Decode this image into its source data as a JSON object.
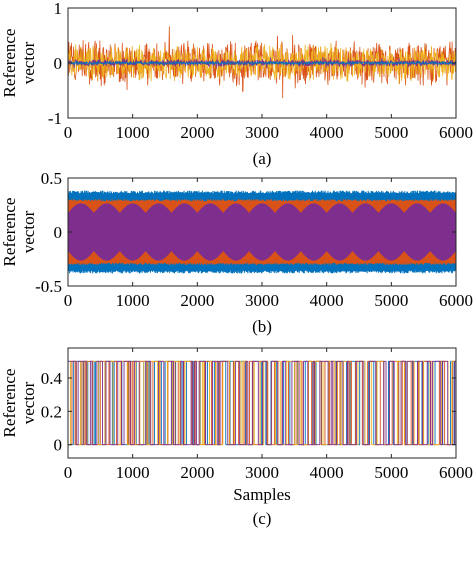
{
  "chart_data": [
    {
      "id": "a",
      "type": "line",
      "caption": "(a)",
      "ylabel": [
        "Reference",
        "vector"
      ],
      "xlabel": "",
      "xlim": [
        0,
        6000
      ],
      "ylim": [
        -1,
        1
      ],
      "xticks": [
        "0",
        "1000",
        "2000",
        "3000",
        "4000",
        "5000",
        "6000"
      ],
      "yticks": [
        "-1",
        "0",
        "1"
      ],
      "grid": false,
      "series": [
        {
          "color": "#D95319",
          "amplitude": 0.45,
          "pattern": "noise"
        },
        {
          "color": "#EDB120",
          "amplitude": 0.35,
          "pattern": "noise"
        },
        {
          "color": "#7E2F8E",
          "amplitude": 0.07,
          "pattern": "noise"
        },
        {
          "color": "#0072BD",
          "amplitude": 0.03,
          "pattern": "noise"
        }
      ]
    },
    {
      "id": "b",
      "type": "line",
      "caption": "(b)",
      "ylabel": [
        "Reference",
        "vector"
      ],
      "xlabel": "",
      "xlim": [
        0,
        6000
      ],
      "ylim": [
        -0.5,
        0.5
      ],
      "xticks": [
        "0",
        "1000",
        "2000",
        "3000",
        "4000",
        "5000",
        "6000"
      ],
      "yticks": [
        "-0.5",
        "0",
        "0.5"
      ],
      "grid": false,
      "series": [
        {
          "color": "#0072BD",
          "amplitude": 0.38,
          "pattern": "dense-oscillation"
        },
        {
          "color": "#D95319",
          "amplitude": 0.3,
          "pattern": "dense-oscillation"
        },
        {
          "color": "#7E2F8E",
          "amplitude": 0.26,
          "pattern": "modulated-envelope",
          "envelope_min": 0.17,
          "envelope_lobes": 15
        }
      ]
    },
    {
      "id": "c",
      "type": "line",
      "caption": "(c)",
      "ylabel": [
        "Reference",
        "vector"
      ],
      "xlabel": "Samples",
      "xlim": [
        0,
        6000
      ],
      "ylim": [
        -0.08,
        0.58
      ],
      "xticks": [
        "0",
        "1000",
        "2000",
        "3000",
        "4000",
        "5000",
        "6000"
      ],
      "yticks": [
        "0",
        "0.2",
        "0.4"
      ],
      "grid": false,
      "series": [
        {
          "color": "#0072BD",
          "levels": [
            0,
            0.5
          ],
          "pattern": "binary-switching"
        },
        {
          "color": "#D95319",
          "levels": [
            0,
            0.5
          ],
          "pattern": "binary-switching"
        },
        {
          "color": "#EDB120",
          "levels": [
            0,
            0.5
          ],
          "pattern": "binary-switching"
        },
        {
          "color": "#7E2F8E",
          "levels": [
            0,
            0.5
          ],
          "pattern": "binary-switching"
        }
      ]
    }
  ]
}
